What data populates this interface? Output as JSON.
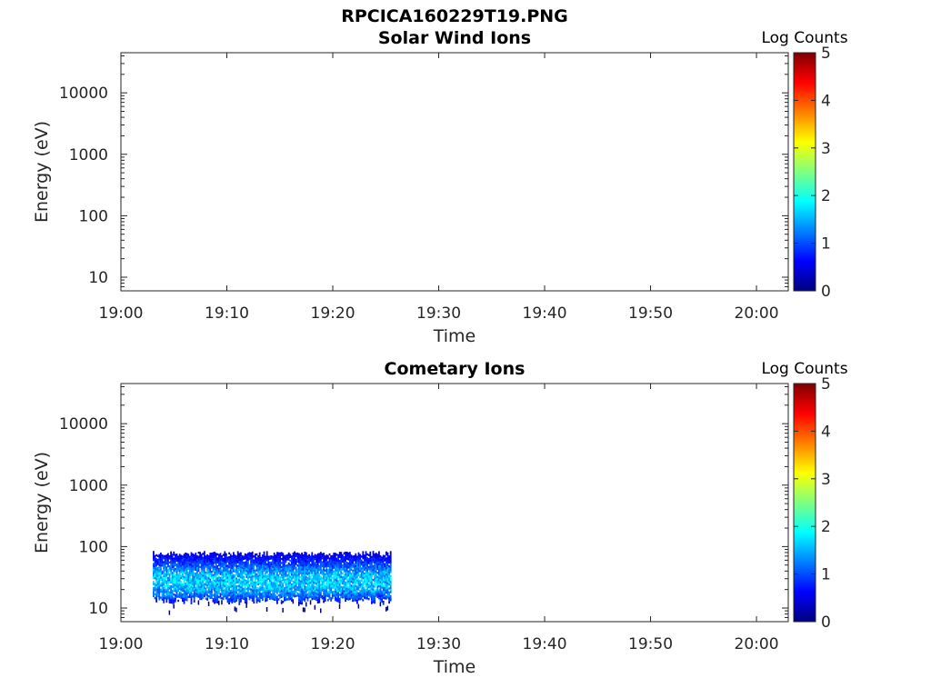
{
  "figure_title": "RPCICA160229T19.PNG",
  "chart_data": [
    {
      "type": "heatmap",
      "title": "Solar Wind Ions",
      "xlabel": "Time",
      "ylabel": "Energy (eV)",
      "x_ticks": [
        "19:00",
        "19:10",
        "19:20",
        "19:30",
        "19:40",
        "19:50",
        "20:00"
      ],
      "x_range_minutes": [
        0,
        63
      ],
      "y_scale": "log",
      "y_ticks": [
        10,
        100,
        1000,
        10000
      ],
      "y_tick_labels": [
        "10",
        "100",
        "1000",
        "10000"
      ],
      "y_range": [
        6,
        45000
      ],
      "colorbar": {
        "label": "Log Counts",
        "range": [
          0,
          5
        ],
        "ticks": [
          "0",
          "1",
          "2",
          "3",
          "4",
          "5"
        ],
        "colormap": "jet"
      },
      "data_block": null
    },
    {
      "type": "heatmap",
      "title": "Cometary Ions",
      "xlabel": "Time",
      "ylabel": "Energy (eV)",
      "x_ticks": [
        "19:00",
        "19:10",
        "19:20",
        "19:30",
        "19:40",
        "19:50",
        "20:00"
      ],
      "x_range_minutes": [
        0,
        63
      ],
      "y_scale": "log",
      "y_ticks": [
        10,
        100,
        1000,
        10000
      ],
      "y_tick_labels": [
        "10",
        "100",
        "1000",
        "10000"
      ],
      "y_range": [
        6,
        45000
      ],
      "colorbar": {
        "label": "Log Counts",
        "range": [
          0,
          5
        ],
        "ticks": [
          "0",
          "1",
          "2",
          "3",
          "4",
          "5"
        ],
        "colormap": "jet"
      },
      "data_block": {
        "time_start_minutes": 3,
        "time_end_minutes": 25.5,
        "energy_min_ev": 12,
        "energy_max_ev": 85,
        "peak_energy_ev": 28,
        "peak_log_counts": 1.9
      }
    }
  ]
}
